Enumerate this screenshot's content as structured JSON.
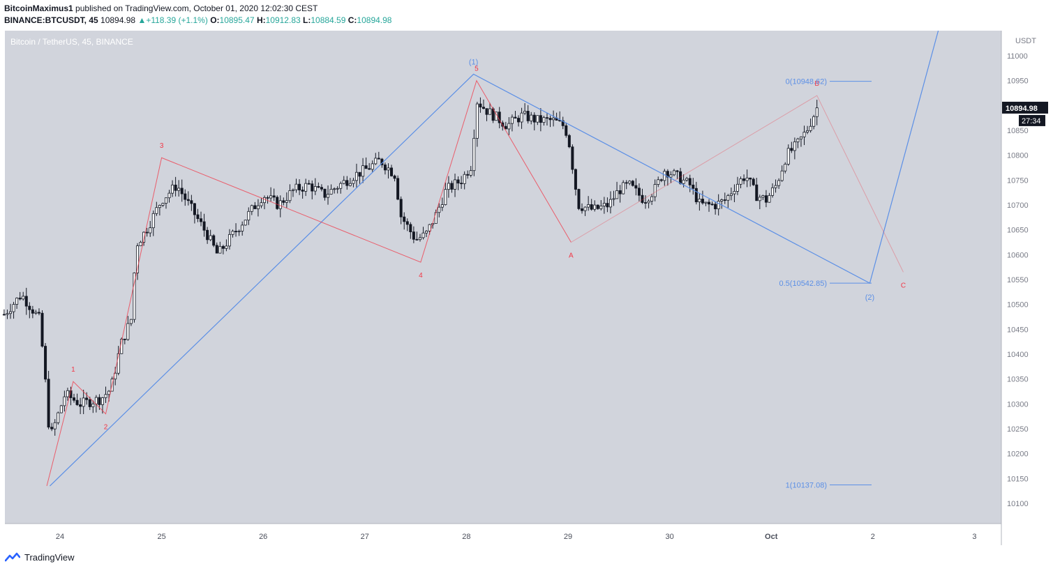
{
  "header": {
    "author": "BitcoinMaximus1",
    "published": "published on TradingView.com, October 01, 2020 12:02:30 CEST",
    "symbol": "BINANCE:BTCUSDT, 45",
    "last": "10894.98",
    "change_arrow": "▲",
    "change": "+118.39 (+1.1%)",
    "o_label": "O:",
    "o": "10895.47",
    "h_label": "H:",
    "h": "10912.83",
    "l_label": "L:",
    "l": "10884.59",
    "c_label": "C:",
    "c": "10894.98"
  },
  "chart_title": "Bitcoin / TetherUS, 45, BINANCE",
  "footer": {
    "logo_icon": "tradingview-logo-icon",
    "brand": "TradingView"
  },
  "colors": {
    "background": "#d1d4dc",
    "candle": "#131722",
    "red": "#f23645",
    "blue": "#2962ff",
    "blue_soft": "#5b8fe6",
    "last_price_bg": "#131722"
  },
  "chart_data": {
    "type": "candlestick",
    "title": "Bitcoin / TetherUS, 45, BINANCE",
    "currency": "USDT",
    "timeframe": "45",
    "ylim": [
      10050,
      11050
    ],
    "y_ticks": [
      10100,
      10150,
      10200,
      10250,
      10300,
      10350,
      10400,
      10450,
      10500,
      10550,
      10600,
      10650,
      10700,
      10750,
      10800,
      10850,
      10900,
      10950,
      11000
    ],
    "x_range": [
      23.45,
      3.25
    ],
    "x_ticks": [
      {
        "x": 24,
        "label": "24"
      },
      {
        "x": 25,
        "label": "25"
      },
      {
        "x": 26,
        "label": "26"
      },
      {
        "x": 27,
        "label": "27"
      },
      {
        "x": 28,
        "label": "28"
      },
      {
        "x": 29,
        "label": "29"
      },
      {
        "x": 30,
        "label": "30"
      },
      {
        "x": 1,
        "label": "Oct"
      },
      {
        "x": 2,
        "label": "2"
      },
      {
        "x": 3,
        "label": "3"
      }
    ],
    "last_price": 10894.98,
    "last_price_label": "10894.98",
    "countdown": "27:34",
    "price_path": [
      [
        23.45,
        10480
      ],
      [
        23.62,
        10520
      ],
      [
        23.8,
        10470
      ],
      [
        23.85,
        10360
      ],
      [
        23.9,
        10230
      ],
      [
        24.05,
        10320
      ],
      [
        24.2,
        10300
      ],
      [
        24.4,
        10310
      ],
      [
        24.5,
        10330
      ],
      [
        24.6,
        10420
      ],
      [
        24.7,
        10470
      ],
      [
        24.75,
        10620
      ],
      [
        24.85,
        10650
      ],
      [
        25.0,
        10710
      ],
      [
        25.15,
        10740
      ],
      [
        25.3,
        10690
      ],
      [
        25.45,
        10640
      ],
      [
        25.55,
        10600
      ],
      [
        25.7,
        10640
      ],
      [
        25.85,
        10680
      ],
      [
        26.0,
        10720
      ],
      [
        26.15,
        10700
      ],
      [
        26.3,
        10730
      ],
      [
        26.45,
        10740
      ],
      [
        26.6,
        10720
      ],
      [
        26.75,
        10740
      ],
      [
        26.9,
        10760
      ],
      [
        27.0,
        10770
      ],
      [
        27.15,
        10790
      ],
      [
        27.3,
        10760
      ],
      [
        27.35,
        10680
      ],
      [
        27.5,
        10630
      ],
      [
        27.6,
        10640
      ],
      [
        27.7,
        10680
      ],
      [
        27.8,
        10730
      ],
      [
        27.95,
        10750
      ],
      [
        28.05,
        10780
      ],
      [
        28.1,
        10910
      ],
      [
        28.2,
        10890
      ],
      [
        28.4,
        10860
      ],
      [
        28.55,
        10880
      ],
      [
        28.7,
        10870
      ],
      [
        28.85,
        10870
      ],
      [
        28.95,
        10860
      ],
      [
        29.0,
        10840
      ],
      [
        29.1,
        10700
      ],
      [
        29.25,
        10690
      ],
      [
        29.4,
        10700
      ],
      [
        29.5,
        10730
      ],
      [
        29.6,
        10740
      ],
      [
        29.75,
        10710
      ],
      [
        29.85,
        10730
      ],
      [
        29.95,
        10770
      ],
      [
        30.05,
        10760
      ],
      [
        30.2,
        10740
      ],
      [
        30.3,
        10700
      ],
      [
        30.45,
        10700
      ],
      [
        30.55,
        10710
      ],
      [
        30.65,
        10740
      ],
      [
        30.75,
        10760
      ],
      [
        30.85,
        10720
      ],
      [
        30.95,
        10710
      ],
      [
        31.05,
        10740
      ],
      [
        31.15,
        10800
      ],
      [
        31.25,
        10820
      ],
      [
        31.35,
        10850
      ],
      [
        31.45,
        10895
      ]
    ],
    "red_wave": [
      {
        "x": 23.87,
        "y": 10135,
        "label": ""
      },
      {
        "x": 24.13,
        "y": 10345,
        "label": "1"
      },
      {
        "x": 24.45,
        "y": 10280,
        "label": "2"
      },
      {
        "x": 25.0,
        "y": 10795,
        "label": "3"
      },
      {
        "x": 27.55,
        "y": 10585,
        "label": "4"
      },
      {
        "x": 28.1,
        "y": 10950,
        "label": "5"
      },
      {
        "x": 29.03,
        "y": 10625,
        "label": "A"
      },
      {
        "x": 31.45,
        "y": 10920,
        "label": "B"
      },
      {
        "x": 32.3,
        "y": 10565,
        "label": "C"
      }
    ],
    "blue_wave": [
      {
        "x": 23.9,
        "y": 10135,
        "label": ""
      },
      {
        "x": 28.07,
        "y": 10963,
        "label": "(1)"
      },
      {
        "x": 31.97,
        "y": 10542.85,
        "label": "(2)"
      },
      {
        "x": 32.65,
        "y": 11055,
        "label": ""
      }
    ],
    "fib_levels": [
      {
        "ratio": "0",
        "price": 10948.62,
        "label": "0(10948.62)"
      },
      {
        "ratio": "0.5",
        "price": 10542.85,
        "label": "0.5(10542.85)"
      },
      {
        "ratio": "1",
        "price": 10137.08,
        "label": "1(10137.08)"
      }
    ]
  }
}
